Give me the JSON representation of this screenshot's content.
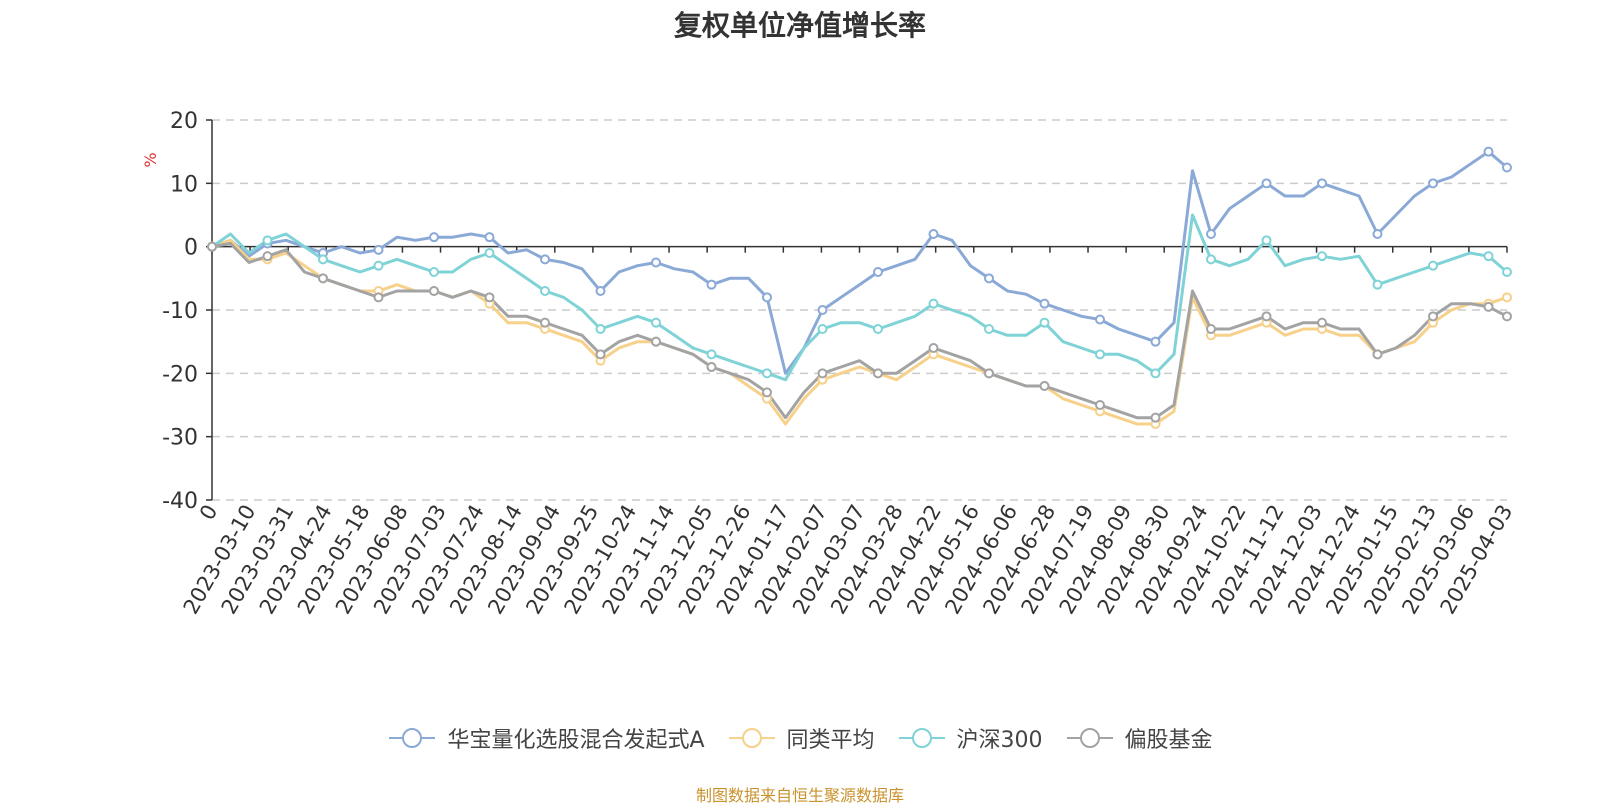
{
  "title": "复权单位净值增长率",
  "footer_note": "制图数据来自恒生聚源数据库",
  "chart_data": {
    "type": "line",
    "y_unit_label": "%",
    "ylim": [
      -40,
      20
    ],
    "yticks": [
      -40,
      -30,
      -20,
      -10,
      0,
      10,
      20
    ],
    "grid": true,
    "legend_position": "bottom",
    "x_tick_labels": [
      "0",
      "2023-03-10",
      "2023-03-31",
      "2023-04-24",
      "2023-05-18",
      "2023-06-08",
      "2023-07-03",
      "2023-07-24",
      "2023-08-14",
      "2023-09-04",
      "2023-09-25",
      "2023-10-24",
      "2023-11-14",
      "2023-12-05",
      "2023-12-26",
      "2024-01-17",
      "2024-02-07",
      "2024-03-07",
      "2024-03-28",
      "2024-04-22",
      "2024-05-16",
      "2024-06-06",
      "2024-06-28",
      "2024-07-19",
      "2024-08-09",
      "2024-08-30",
      "2024-09-24",
      "2024-10-22",
      "2024-11-12",
      "2024-12-03",
      "2024-12-24",
      "2025-01-15",
      "2025-02-13",
      "2025-03-06",
      "2025-04-03"
    ],
    "x": [
      "0",
      "2023-03-10",
      "2023-03-20",
      "2023-03-31",
      "2023-04-12",
      "2023-04-24",
      "2023-05-08",
      "2023-05-18",
      "2023-05-29",
      "2023-06-08",
      "2023-06-20",
      "2023-07-03",
      "2023-07-13",
      "2023-07-24",
      "2023-08-03",
      "2023-08-14",
      "2023-08-24",
      "2023-09-04",
      "2023-09-14",
      "2023-09-25",
      "2023-10-12",
      "2023-10-24",
      "2023-11-03",
      "2023-11-14",
      "2023-11-24",
      "2023-12-05",
      "2023-12-15",
      "2023-12-26",
      "2024-01-05",
      "2024-01-17",
      "2024-01-29",
      "2024-02-07",
      "2024-02-22",
      "2024-03-07",
      "2024-03-18",
      "2024-03-28",
      "2024-04-10",
      "2024-04-22",
      "2024-05-06",
      "2024-05-16",
      "2024-05-27",
      "2024-06-06",
      "2024-06-18",
      "2024-06-28",
      "2024-07-09",
      "2024-07-19",
      "2024-07-30",
      "2024-08-09",
      "2024-08-20",
      "2024-08-30",
      "2024-09-10",
      "2024-09-20",
      "2024-09-24",
      "2024-09-30",
      "2024-10-11",
      "2024-10-22",
      "2024-11-01",
      "2024-11-12",
      "2024-11-22",
      "2024-12-03",
      "2024-12-13",
      "2024-12-24",
      "2025-01-06",
      "2025-01-15",
      "2025-01-27",
      "2025-02-13",
      "2025-02-24",
      "2025-03-06",
      "2025-03-17",
      "2025-03-26",
      "2025-04-03"
    ],
    "series": [
      {
        "name": "华宝量化选股混合发起式A",
        "color": "#8aa9d6",
        "values": [
          0,
          1,
          -1.5,
          0.5,
          1,
          0,
          -1,
          0,
          -1,
          -0.5,
          1.5,
          1,
          1.5,
          1.5,
          2,
          1.5,
          -1,
          -0.5,
          -2,
          -2.5,
          -3.5,
          -7,
          -4,
          -3,
          -2.5,
          -3.5,
          -4,
          -6,
          -5,
          -5,
          -8,
          -20,
          -16,
          -10,
          -8,
          -6,
          -4,
          -3,
          -2,
          2,
          1,
          -3,
          -5,
          -7,
          -7.5,
          -9,
          -10,
          -11,
          -11.5,
          -13,
          -14,
          -15,
          -12,
          12,
          2,
          6,
          8,
          10,
          8,
          8,
          10,
          9,
          8,
          2,
          5,
          8,
          10,
          11,
          13,
          15,
          12.5
        ]
      },
      {
        "name": "同类平均",
        "color": "#f7d08a",
        "values": [
          0,
          1,
          -2,
          -2,
          -1,
          -3,
          -5,
          -6,
          -7,
          -7,
          -6,
          -7,
          -7,
          -8,
          -7,
          -9,
          -12,
          -12,
          -13,
          -14,
          -15,
          -18,
          -16,
          -15,
          -15,
          -16,
          -17,
          -19,
          -20,
          -22,
          -24,
          -28,
          -24,
          -21,
          -20,
          -19,
          -20,
          -21,
          -19,
          -17,
          -18,
          -19,
          -20,
          -21,
          -22,
          -22,
          -24,
          -25,
          -26,
          -27,
          -28,
          -28,
          -26,
          -8,
          -14,
          -14,
          -13,
          -12,
          -14,
          -13,
          -13,
          -14,
          -14,
          -17,
          -16,
          -15,
          -12,
          -10,
          -9,
          -9,
          -8
        ]
      },
      {
        "name": "沪深300",
        "color": "#7fd3d6",
        "values": [
          0,
          2,
          -1,
          1,
          2,
          0,
          -2,
          -3,
          -4,
          -3,
          -2,
          -3,
          -4,
          -4,
          -2,
          -1,
          -3,
          -5,
          -7,
          -8,
          -10,
          -13,
          -12,
          -11,
          -12,
          -14,
          -16,
          -17,
          -18,
          -19,
          -20,
          -21,
          -16,
          -13,
          -12,
          -12,
          -13,
          -12,
          -11,
          -9,
          -10,
          -11,
          -13,
          -14,
          -14,
          -12,
          -15,
          -16,
          -17,
          -17,
          -18,
          -20,
          -17,
          5,
          -2,
          -3,
          -2,
          1,
          -3,
          -2,
          -1.5,
          -2,
          -1.5,
          -6,
          -5,
          -4,
          -3,
          -2,
          -1,
          -1.5,
          -4
        ]
      },
      {
        "name": "偏股基金",
        "color": "#a3a3a3",
        "values": [
          0,
          0.5,
          -2.5,
          -1.5,
          -0.5,
          -4,
          -5,
          -6,
          -7,
          -8,
          -7,
          -7,
          -7,
          -8,
          -7,
          -8,
          -11,
          -11,
          -12,
          -13,
          -14,
          -17,
          -15,
          -14,
          -15,
          -16,
          -17,
          -19,
          -20,
          -21,
          -23,
          -27,
          -23,
          -20,
          -19,
          -18,
          -20,
          -20,
          -18,
          -16,
          -17,
          -18,
          -20,
          -21,
          -22,
          -22,
          -23,
          -24,
          -25,
          -26,
          -27,
          -27,
          -25,
          -7,
          -13,
          -13,
          -12,
          -11,
          -13,
          -12,
          -12,
          -13,
          -13,
          -17,
          -16,
          -14,
          -11,
          -9,
          -9,
          -9.5,
          -11
        ]
      }
    ]
  }
}
